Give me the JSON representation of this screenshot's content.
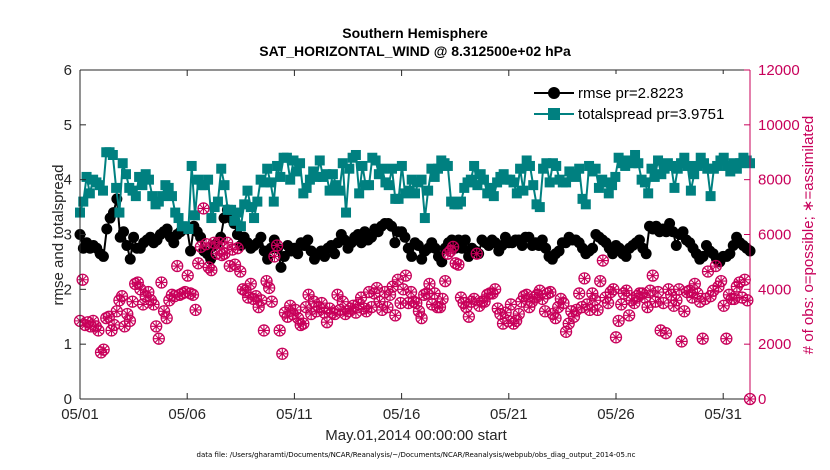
{
  "chart_data": {
    "type": "line",
    "title": "Southern Hemisphere",
    "subtitle": "SAT_HORIZONTAL_WIND @ 8.312500e+02 hPa",
    "xlabel": "May.01,2014 00:00:00 start",
    "ylabel": "rmse and totalspread",
    "ylabel_right": "# of obs: o=possible; ∗=assimilated",
    "footnote": "data file: /Users/gharamti/Documents/NCAR/Reanalysis/~/Documents/NCAR/Reanalysis/webpub/obs_diag_output_2014-05.nc",
    "x_range": [
      0,
      31.25
    ],
    "x_unit": "days since May.01,2014 00:00:00 (6-hourly)",
    "ylim": [
      0,
      6
    ],
    "ylim_right": [
      0,
      12000
    ],
    "x_ticks": [
      0,
      5,
      10,
      15,
      20,
      25,
      30
    ],
    "x_tick_labels": [
      "05/01",
      "05/06",
      "05/11",
      "05/16",
      "05/21",
      "05/26",
      "05/31"
    ],
    "y_ticks": [
      0,
      1,
      2,
      3,
      4,
      5,
      6
    ],
    "y_ticks_right": [
      0,
      2000,
      4000,
      6000,
      8000,
      10000,
      12000
    ],
    "grid": false,
    "legend_position": "top-right",
    "series": [
      {
        "name": "rmse pr=2.8223",
        "axis": "left",
        "color": "#000000",
        "marker": "circle",
        "values": [
          3.0,
          2.75,
          2.85,
          2.75,
          2.8,
          2.75,
          2.65,
          2.6,
          3.1,
          3.3,
          3.4,
          3.65,
          2.95,
          3.05,
          2.8,
          2.55,
          2.95,
          2.75,
          2.75,
          2.85,
          2.9,
          2.95,
          2.85,
          2.9,
          3.0,
          3.05,
          3.1,
          2.95,
          2.85,
          3.0,
          3.05,
          3.1,
          3.1,
          2.7,
          3.15,
          3.05,
          2.95,
          2.7,
          2.65,
          2.55,
          2.8,
          2.85,
          2.95,
          3.3,
          3.45,
          3.3,
          3.2,
          3.0,
          2.8,
          2.95,
          2.85,
          2.75,
          2.8,
          2.85,
          2.95,
          2.7,
          2.55,
          2.75,
          2.9,
          2.75,
          2.4,
          2.6,
          2.8,
          2.7,
          2.75,
          2.65,
          2.85,
          2.8,
          2.9,
          2.7,
          2.55,
          2.65,
          2.7,
          2.6,
          2.75,
          2.8,
          2.65,
          2.85,
          3.0,
          2.9,
          2.75,
          2.85,
          2.95,
          3.0,
          2.85,
          3.05,
          2.9,
          2.95,
          3.1,
          3.05,
          3.15,
          3.2,
          3.2,
          3.15,
          2.85,
          3.05,
          3.05,
          2.95,
          2.75,
          2.6,
          2.85,
          2.8,
          2.55,
          2.7,
          2.75,
          2.85,
          2.75,
          2.6,
          2.5,
          2.75,
          2.85,
          2.9,
          2.75,
          2.9,
          2.75,
          2.9,
          2.6,
          2.75,
          2.7,
          2.65,
          2.9,
          2.85,
          2.8,
          2.9,
          2.85,
          2.7,
          2.8,
          2.95,
          2.85,
          2.85,
          2.9,
          2.9,
          2.8,
          2.95,
          2.95,
          2.8,
          2.85,
          2.8,
          2.9,
          2.75,
          2.6,
          2.55,
          2.65,
          2.7,
          2.85,
          2.85,
          2.95,
          2.9,
          2.9,
          2.85,
          2.75,
          2.65,
          2.7,
          2.75,
          3.0,
          2.95,
          2.9,
          2.85,
          2.75,
          2.65,
          2.8,
          2.75,
          2.65,
          2.6,
          2.75,
          2.8,
          2.85,
          2.9,
          2.75,
          2.65,
          3.15,
          3.1,
          3.15,
          3.05,
          3.1,
          3.05,
          3.2,
          3.05,
          2.8,
          3.0,
          3.05,
          2.9,
          2.85,
          2.75,
          2.65,
          2.55,
          2.6,
          2.8,
          2.7,
          2.65,
          2.55,
          2.5,
          2.6,
          2.6,
          2.65,
          2.8,
          2.95,
          2.85,
          2.8,
          2.75,
          2.7
        ]
      },
      {
        "name": "totalspread pr=3.9751",
        "axis": "left",
        "color": "#008080",
        "marker": "square",
        "values": [
          3.4,
          3.6,
          4.05,
          3.75,
          4.0,
          3.95,
          3.9,
          3.8,
          4.5,
          4.5,
          4.45,
          3.85,
          3.4,
          4.3,
          4.1,
          3.85,
          3.8,
          3.7,
          4.05,
          3.9,
          4.1,
          4.0,
          3.7,
          3.55,
          3.6,
          3.7,
          3.9,
          3.85,
          3.7,
          3.4,
          3.3,
          3.15,
          3.15,
          3.1,
          4.25,
          3.35,
          4.0,
          3.9,
          3.9,
          4.0,
          3.3,
          3.5,
          3.6,
          4.2,
          3.9,
          3.45,
          3.45,
          3.25,
          3.4,
          3.15,
          3.55,
          3.8,
          3.5,
          3.3,
          3.6,
          4.0,
          3.95,
          4.2,
          3.95,
          3.6,
          4.25,
          4.05,
          4.4,
          4.4,
          4.0,
          4.35,
          4.15,
          4.3,
          3.75,
          3.85,
          4.0,
          4.15,
          4.05,
          4.35,
          4.05,
          4.1,
          3.8,
          4.1,
          3.9,
          3.8,
          4.3,
          3.4,
          4.2,
          4.4,
          4.45,
          3.75,
          4.25,
          3.9,
          3.9,
          4.4,
          4.35,
          4.1,
          4.2,
          3.95,
          3.9,
          4.2,
          3.65,
          3.65,
          4.25,
          3.75,
          3.8,
          4.0,
          3.75,
          3.95,
          4.0,
          3.3,
          3.8,
          4.2,
          4.05,
          4.2,
          4.35,
          4.3,
          4.25,
          3.6,
          3.55,
          3.55,
          3.6,
          3.85,
          3.95,
          4.0,
          4.25,
          3.9,
          4.1,
          4.0,
          3.75,
          3.85,
          3.7,
          3.95,
          4.05,
          4.1,
          4.0,
          4.0,
          3.95,
          3.75,
          4.2,
          3.8,
          4.35,
          4.25,
          3.9,
          3.55,
          3.5,
          4.2,
          4.3,
          3.95,
          4.3,
          4.25,
          4.0,
          3.95,
          3.95,
          4.15,
          4.1,
          4.05,
          4.2,
          3.65,
          3.55,
          4.25,
          4.15,
          4.2,
          3.85,
          4.0,
          3.95,
          3.75,
          3.9,
          4.05,
          4.4,
          4.3,
          4.25,
          4.35,
          4.3,
          4.45,
          4.3,
          4.0,
          3.95,
          3.75,
          4.2,
          4.05,
          4.35,
          4.1,
          4.2,
          4.3,
          4.25,
          3.85,
          4.2,
          4.3,
          4.4,
          4.25,
          3.8,
          4.1,
          4.25,
          4.4,
          4.3,
          4.2,
          3.7,
          4.2,
          4.25,
          4.35,
          4.4,
          4.25,
          4.15,
          4.3,
          4.2,
          4.3,
          4.4,
          4.35,
          4.3
        ]
      },
      {
        "name": "obs possible",
        "axis": "right",
        "color": "#c8005a",
        "marker": "circle-open",
        "values": [
          2850,
          4350,
          2700,
          2800,
          2650,
          2850,
          2650,
          2500,
          1700,
          1800,
          2950,
          3000,
          2500,
          2700,
          3200,
          3600,
          3750,
          2650,
          3100,
          2850,
          3550,
          4200,
          4250,
          4000,
          3450,
          3750,
          3900,
          3600,
          3450,
          2650,
          2200,
          4250,
          3200,
          2950,
          3600,
          3800,
          3750,
          4850,
          3800,
          3850,
          3900,
          4500,
          3850,
          3800,
          3250,
          4950,
          5550,
          6950,
          5650,
          4800,
          4700,
          5700,
          5300,
          5700,
          5250,
          5300,
          5700,
          4850,
          5450,
          4900,
          5500,
          4650,
          4000,
          3950,
          3700,
          4200,
          3650,
          3750,
          3350,
          3600,
          2500,
          4300,
          4050,
          3550,
          5200,
          5600,
          2500,
          1650,
          3150,
          3000,
          3400,
          3100,
          3250,
          2950,
          2700,
          2750,
          3350,
          3800,
          3100,
          3550,
          3200,
          3350,
          3500,
          3150,
          2800,
          3300,
          3150,
          3100,
          3800,
          3250,
          3550,
          3100,
          3200,
          3300,
          3400,
          3150,
          3450,
          3700,
          3300,
          3200,
          3900,
          3350,
          3850,
          4050,
          3550,
          3250,
          3900,
          3350,
          3800,
          4100,
          3050,
          4350,
          3500,
          4000,
          4500,
          3500,
          3900,
          3550,
          3500,
          3200,
          2950,
          3800,
          3850,
          4200,
          3450,
          3850,
          3350,
          3350,
          3650,
          4300,
          5300,
          5400,
          5550,
          4950,
          4900,
          3700,
          3500,
          3350,
          3000,
          3550,
          3650,
          5300,
          3400,
          3550,
          3550,
          3800,
          3850,
          3850,
          4000,
          3300,
          3100,
          2750,
          3150,
          2850,
          3450,
          2750,
          2850,
          3100,
          3550,
          3750,
          3800,
          3350,
          3550,
          3700,
          3800,
          3950,
          3650,
          3200,
          3850,
          3900,
          3100,
          2950,
          3350,
          3650,
          3500,
          2450,
          2750,
          3200,
          3000,
          3250,
          3850,
          3350,
          4400,
          3450,
          3250,
          3850,
          3600,
          3250,
          4300,
          5050,
          3700,
          3500,
          3900,
          4000,
          2250,
          2850,
          3450,
          3850,
          3950,
          3050,
          3600,
          3500,
          3750,
          3850,
          3850,
          3700,
          3350,
          3950,
          4500,
          3550,
          3900,
          2500,
          3500,
          2400,
          4000,
          3800,
          3400,
          3600,
          4000,
          2100,
          3200,
          3900,
          3950,
          3700,
          4200,
          3850,
          3550,
          2200,
          3650,
          4650,
          3750,
          3950,
          4850,
          4100,
          4300,
          3400,
          2200,
          3800,
          3650,
          3650,
          4100,
          4250,
          3700,
          4350,
          3600,
          0
        ]
      },
      {
        "name": "obs assimilated",
        "axis": "right",
        "color": "#c8005a",
        "marker": "asterisk",
        "values": [
          2850,
          4350,
          2700,
          2800,
          2650,
          2850,
          2650,
          2500,
          1700,
          1800,
          2950,
          3000,
          2500,
          2700,
          3200,
          3600,
          3750,
          2650,
          3100,
          2850,
          3550,
          4200,
          4250,
          4000,
          3450,
          3750,
          3900,
          3600,
          3450,
          2650,
          2200,
          4250,
          3200,
          2950,
          3600,
          3800,
          3750,
          4850,
          3800,
          3850,
          3900,
          4500,
          3850,
          3800,
          3250,
          4950,
          5550,
          6950,
          5650,
          4800,
          4700,
          5700,
          5300,
          5700,
          5250,
          5300,
          5700,
          4850,
          5450,
          4900,
          5500,
          4650,
          4000,
          3950,
          3700,
          4200,
          3650,
          3750,
          3350,
          3600,
          2500,
          4300,
          4050,
          3550,
          5200,
          5600,
          2500,
          1650,
          3150,
          3000,
          3400,
          3100,
          3250,
          2950,
          2700,
          2750,
          3350,
          3800,
          3100,
          3550,
          3200,
          3350,
          3500,
          3150,
          2800,
          3300,
          3150,
          3100,
          3800,
          3250,
          3550,
          3100,
          3200,
          3300,
          3400,
          3150,
          3450,
          3700,
          3300,
          3200,
          3900,
          3350,
          3850,
          4050,
          3550,
          3250,
          3900,
          3350,
          3800,
          4100,
          3050,
          4350,
          3500,
          4000,
          4500,
          3500,
          3900,
          3550,
          3500,
          3200,
          2950,
          3800,
          3850,
          4200,
          3450,
          3850,
          3350,
          3350,
          3650,
          4300,
          5300,
          5400,
          5550,
          4950,
          4900,
          3700,
          3500,
          3350,
          3000,
          3550,
          3650,
          5300,
          3400,
          3550,
          3550,
          3800,
          3850,
          3850,
          4000,
          3300,
          3100,
          2750,
          3150,
          2850,
          3450,
          2750,
          2850,
          3100,
          3550,
          3750,
          3800,
          3350,
          3550,
          3700,
          3800,
          3950,
          3650,
          3200,
          3850,
          3900,
          3100,
          2950,
          3350,
          3650,
          3500,
          2450,
          2750,
          3200,
          3000,
          3250,
          3850,
          3350,
          4400,
          3450,
          3250,
          3850,
          3600,
          3250,
          4300,
          5050,
          3700,
          3500,
          3900,
          4000,
          2250,
          2850,
          3450,
          3850,
          3950,
          3050,
          3600,
          3500,
          3750,
          3850,
          3850,
          3700,
          3350,
          3950,
          4500,
          3550,
          3900,
          2500,
          3500,
          2400,
          4000,
          3800,
          3400,
          3600,
          4000,
          2100,
          3200,
          3900,
          3950,
          3700,
          4200,
          3850,
          3550,
          2200,
          3650,
          4650,
          3750,
          3950,
          4850,
          4100,
          4300,
          3400,
          2200,
          3800,
          3650,
          3650,
          4100,
          4250,
          3700,
          4350,
          3600,
          0
        ]
      }
    ]
  }
}
